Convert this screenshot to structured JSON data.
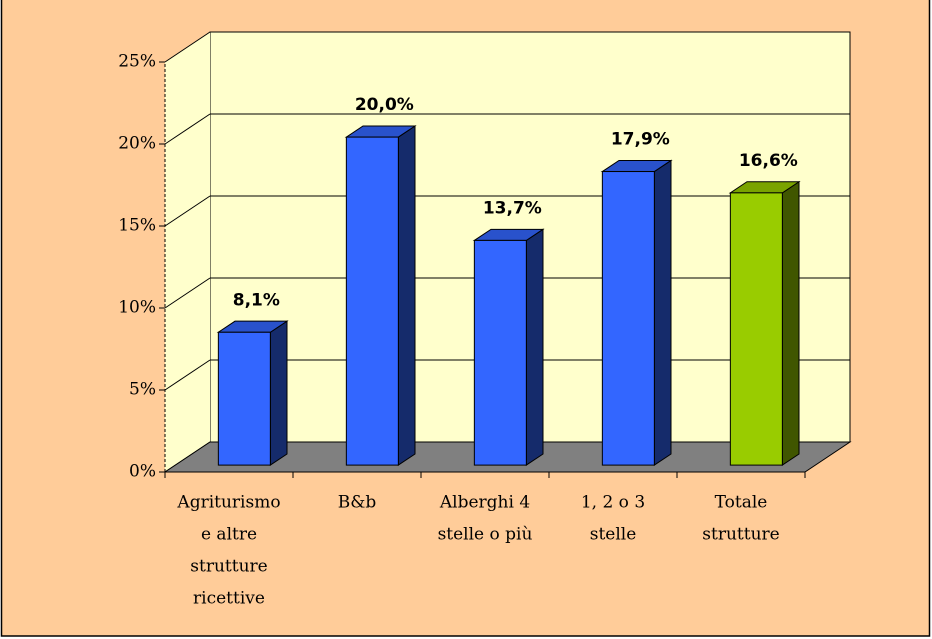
{
  "chart_data": {
    "type": "bar3d",
    "categories": [
      [
        "Agriturismo",
        "e altre",
        "strutture",
        "ricettive"
      ],
      [
        "B&b"
      ],
      [
        "Alberghi 4",
        "stelle o più"
      ],
      [
        "1, 2 o 3",
        "stelle"
      ],
      [
        "Totale",
        "strutture"
      ]
    ],
    "values": [
      8.1,
      20.0,
      13.7,
      17.9,
      16.6
    ],
    "value_labels": [
      "8,1%",
      "20,0%",
      "13,7%",
      "17,9%",
      "16,6%"
    ],
    "colors": [
      "#3366ff",
      "#3366ff",
      "#3366ff",
      "#3366ff",
      "#99cc00"
    ],
    "ylim": [
      0,
      25
    ],
    "yticks": [
      {
        "value": 0,
        "label": "0%"
      },
      {
        "value": 5,
        "label": "5%"
      },
      {
        "value": 10,
        "label": "10%"
      },
      {
        "value": 15,
        "label": "15%"
      },
      {
        "value": 20,
        "label": "20%"
      },
      {
        "value": 25,
        "label": "25%"
      }
    ],
    "grid": true
  }
}
